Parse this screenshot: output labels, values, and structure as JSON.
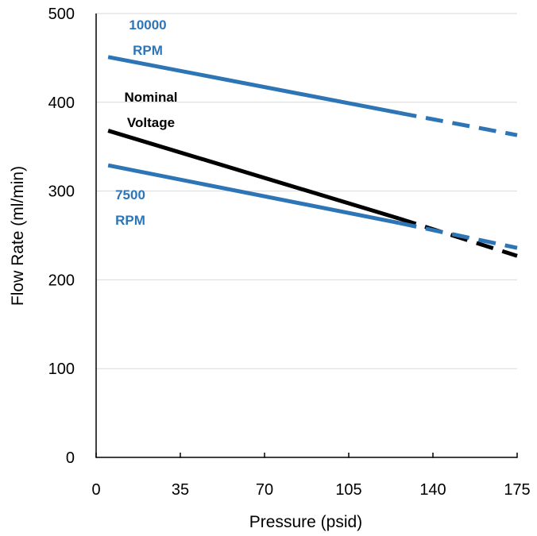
{
  "chart_data": {
    "type": "line",
    "title": "",
    "xlabel": "Pressure (psid)",
    "ylabel": "Flow Rate (ml/min)",
    "xlim": [
      0,
      175
    ],
    "ylim": [
      0,
      500
    ],
    "xticks": [
      0,
      35,
      70,
      105,
      140,
      175
    ],
    "yticks": [
      0,
      100,
      200,
      300,
      400,
      500
    ],
    "grid": "horizontal",
    "legend": "none",
    "series": [
      {
        "name_lines": [
          "10000",
          "RPM"
        ],
        "color": "#2E75B6",
        "solid": [
          [
            5,
            451
          ],
          [
            126,
            388
          ]
        ],
        "dashed": [
          [
            126,
            388
          ],
          [
            175,
            363
          ]
        ]
      },
      {
        "name_lines": [
          "Nominal",
          "Voltage"
        ],
        "color": "#000000",
        "solid": [
          [
            5,
            368
          ],
          [
            126,
            269
          ]
        ],
        "dashed": [
          [
            126,
            269
          ],
          [
            175,
            227
          ]
        ]
      },
      {
        "name_lines": [
          "7500",
          "RPM"
        ],
        "color": "#2E75B6",
        "solid": [
          [
            5,
            329
          ],
          [
            126,
            264
          ]
        ],
        "dashed": [
          [
            126,
            264
          ],
          [
            175,
            236
          ]
        ]
      }
    ]
  }
}
